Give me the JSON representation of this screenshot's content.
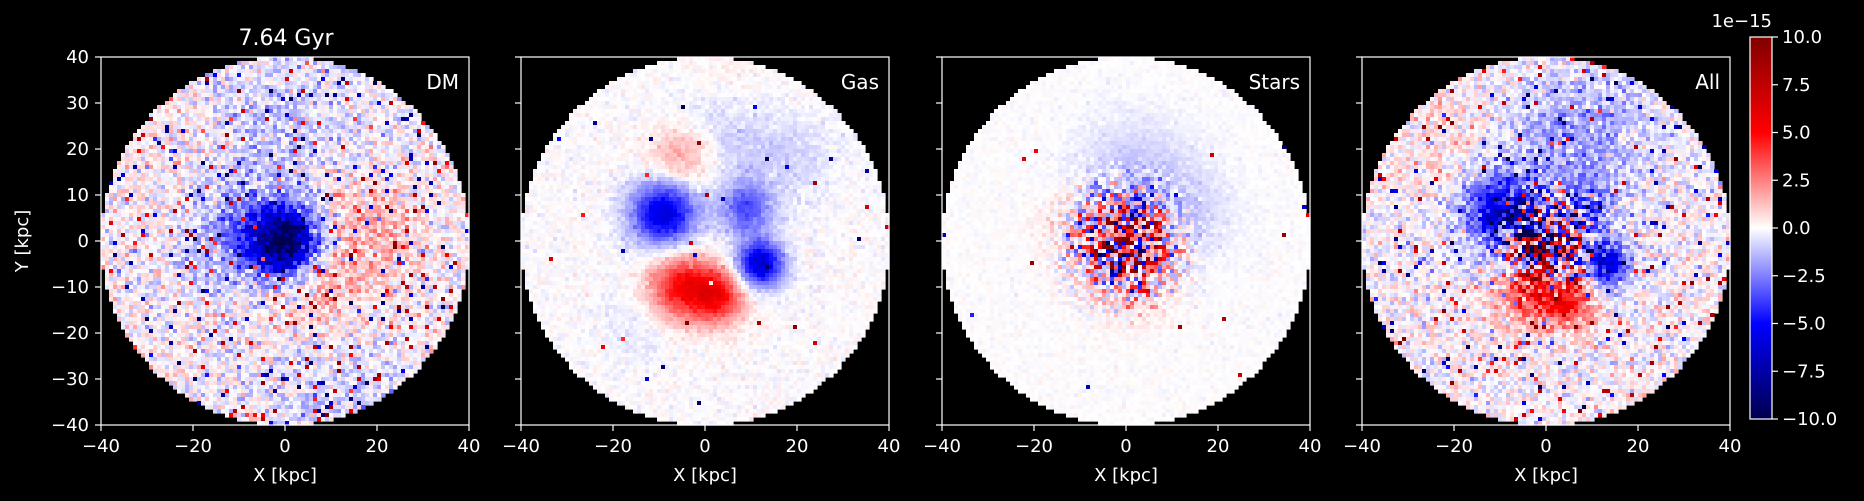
{
  "title": "7.64 Gyr",
  "chart_data": [
    {
      "type": "heatmap",
      "panel_label": "DM",
      "xlabel": "X [kpc]",
      "ylabel": "Y [kpc]",
      "xlim": [
        -40,
        40
      ],
      "ylim": [
        -40,
        40
      ],
      "xticks": [
        -40,
        -20,
        0,
        20,
        40
      ],
      "yticks": [
        -40,
        -30,
        -20,
        -10,
        0,
        10,
        20,
        30,
        40
      ],
      "features": [
        {
          "x": 0,
          "y": 0,
          "sigma": 5,
          "amp": -9
        },
        {
          "x": -9,
          "y": 1,
          "sigma": 8,
          "amp": -2.5
        },
        {
          "x": 17,
          "y": 2,
          "sigma": 9,
          "amp": 1.6
        },
        {
          "x": 6,
          "y": -13,
          "sigma": 8,
          "amp": 1.2
        },
        {
          "x": -4,
          "y": 24,
          "sigma": 14,
          "amp": -1.1
        },
        {
          "x": 10,
          "y": -32,
          "sigma": 12,
          "amp": -0.9
        },
        {
          "x": -24,
          "y": 19,
          "sigma": 10,
          "amp": 0.7
        }
      ],
      "noise": 1.3,
      "speckle_rate": 0.05
    },
    {
      "type": "heatmap",
      "panel_label": "Gas",
      "xlabel": "X [kpc]",
      "xlim": [
        -40,
        40
      ],
      "ylim": [
        -40,
        40
      ],
      "xticks": [
        -40,
        -20,
        0,
        20,
        40
      ],
      "features": [
        {
          "x": -9,
          "y": 6,
          "sigma": 5,
          "amp": -6
        },
        {
          "x": 9,
          "y": 7,
          "sigma": 4,
          "amp": -3.5
        },
        {
          "x": 12,
          "y": -5,
          "sigma": 3.5,
          "amp": -6.5
        },
        {
          "x": -5,
          "y": -10,
          "sigma": 5,
          "amp": 5
        },
        {
          "x": 3,
          "y": -12,
          "sigma": 4,
          "amp": 4.5
        },
        {
          "x": -5,
          "y": 18,
          "sigma": 5,
          "amp": 2.2
        },
        {
          "x": 3,
          "y": 24,
          "sigma": 8,
          "amp": -1.2
        },
        {
          "x": 5,
          "y": 33,
          "sigma": 8,
          "amp": 0.6
        },
        {
          "x": 18,
          "y": 18,
          "sigma": 7,
          "amp": -0.8
        },
        {
          "x": -14,
          "y": -18,
          "sigma": 6,
          "amp": -0.5
        }
      ],
      "noise": 0.35,
      "speckle_rate": 0.005
    },
    {
      "type": "heatmap",
      "panel_label": "Stars",
      "xlabel": "X [kpc]",
      "xlim": [
        -40,
        40
      ],
      "ylim": [
        -40,
        40
      ],
      "xticks": [
        -40,
        -20,
        0,
        20,
        40
      ],
      "features": [
        {
          "x": 1,
          "y": 1,
          "sigma": 5,
          "amp": 4
        },
        {
          "x": 2,
          "y": 13,
          "sigma": 9,
          "amp": -1.2
        },
        {
          "x": 14,
          "y": 5,
          "sigma": 7,
          "amp": -0.7
        },
        {
          "x": -12,
          "y": 4,
          "sigma": 5,
          "amp": 0.8
        },
        {
          "x": 2,
          "y": -12,
          "sigma": 5,
          "amp": 0.7
        }
      ],
      "noise": 0.2,
      "speckle_rate": 0.002,
      "core_noise": {
        "x": 0,
        "y": 0,
        "sigma": 7,
        "amp": 8
      }
    },
    {
      "type": "heatmap",
      "panel_label": "All",
      "xlabel": "X [kpc]",
      "xlim": [
        -40,
        40
      ],
      "ylim": [
        -40,
        40
      ],
      "xticks": [
        -40,
        -20,
        0,
        20,
        40
      ],
      "features": [
        {
          "x": -9,
          "y": 6,
          "sigma": 6,
          "amp": -6
        },
        {
          "x": 9,
          "y": 7,
          "sigma": 4,
          "amp": -3.5
        },
        {
          "x": 13,
          "y": -5,
          "sigma": 3.5,
          "amp": -6
        },
        {
          "x": -4,
          "y": -11,
          "sigma": 5,
          "amp": 4
        },
        {
          "x": 5,
          "y": -13,
          "sigma": 4,
          "amp": 4.5
        },
        {
          "x": 1,
          "y": 1,
          "sigma": 5,
          "amp": 2
        },
        {
          "x": 2,
          "y": 22,
          "sigma": 10,
          "amp": -1.5
        },
        {
          "x": -20,
          "y": 22,
          "sigma": 10,
          "amp": 0.6
        },
        {
          "x": 15,
          "y": 25,
          "sigma": 10,
          "amp": -0.8
        }
      ],
      "noise": 1.2,
      "speckle_rate": 0.04,
      "core_noise": {
        "x": 0,
        "y": 0,
        "sigma": 6,
        "amp": 10
      }
    }
  ],
  "colorbar": {
    "colormap": "seismic",
    "colors": [
      "#00004d",
      "#0000ff",
      "#ffffff",
      "#ff0000",
      "#800000"
    ],
    "vmin": -10,
    "vmax": 10,
    "ticks": [
      "−10.0",
      "−7.5",
      "−5.0",
      "−2.5",
      "0.0",
      "2.5",
      "5.0",
      "7.5",
      "10.0"
    ],
    "tick_values": [
      -10,
      -7.5,
      -5,
      -2.5,
      0,
      2.5,
      5,
      7.5,
      10
    ],
    "offset_text": "1e−15"
  }
}
